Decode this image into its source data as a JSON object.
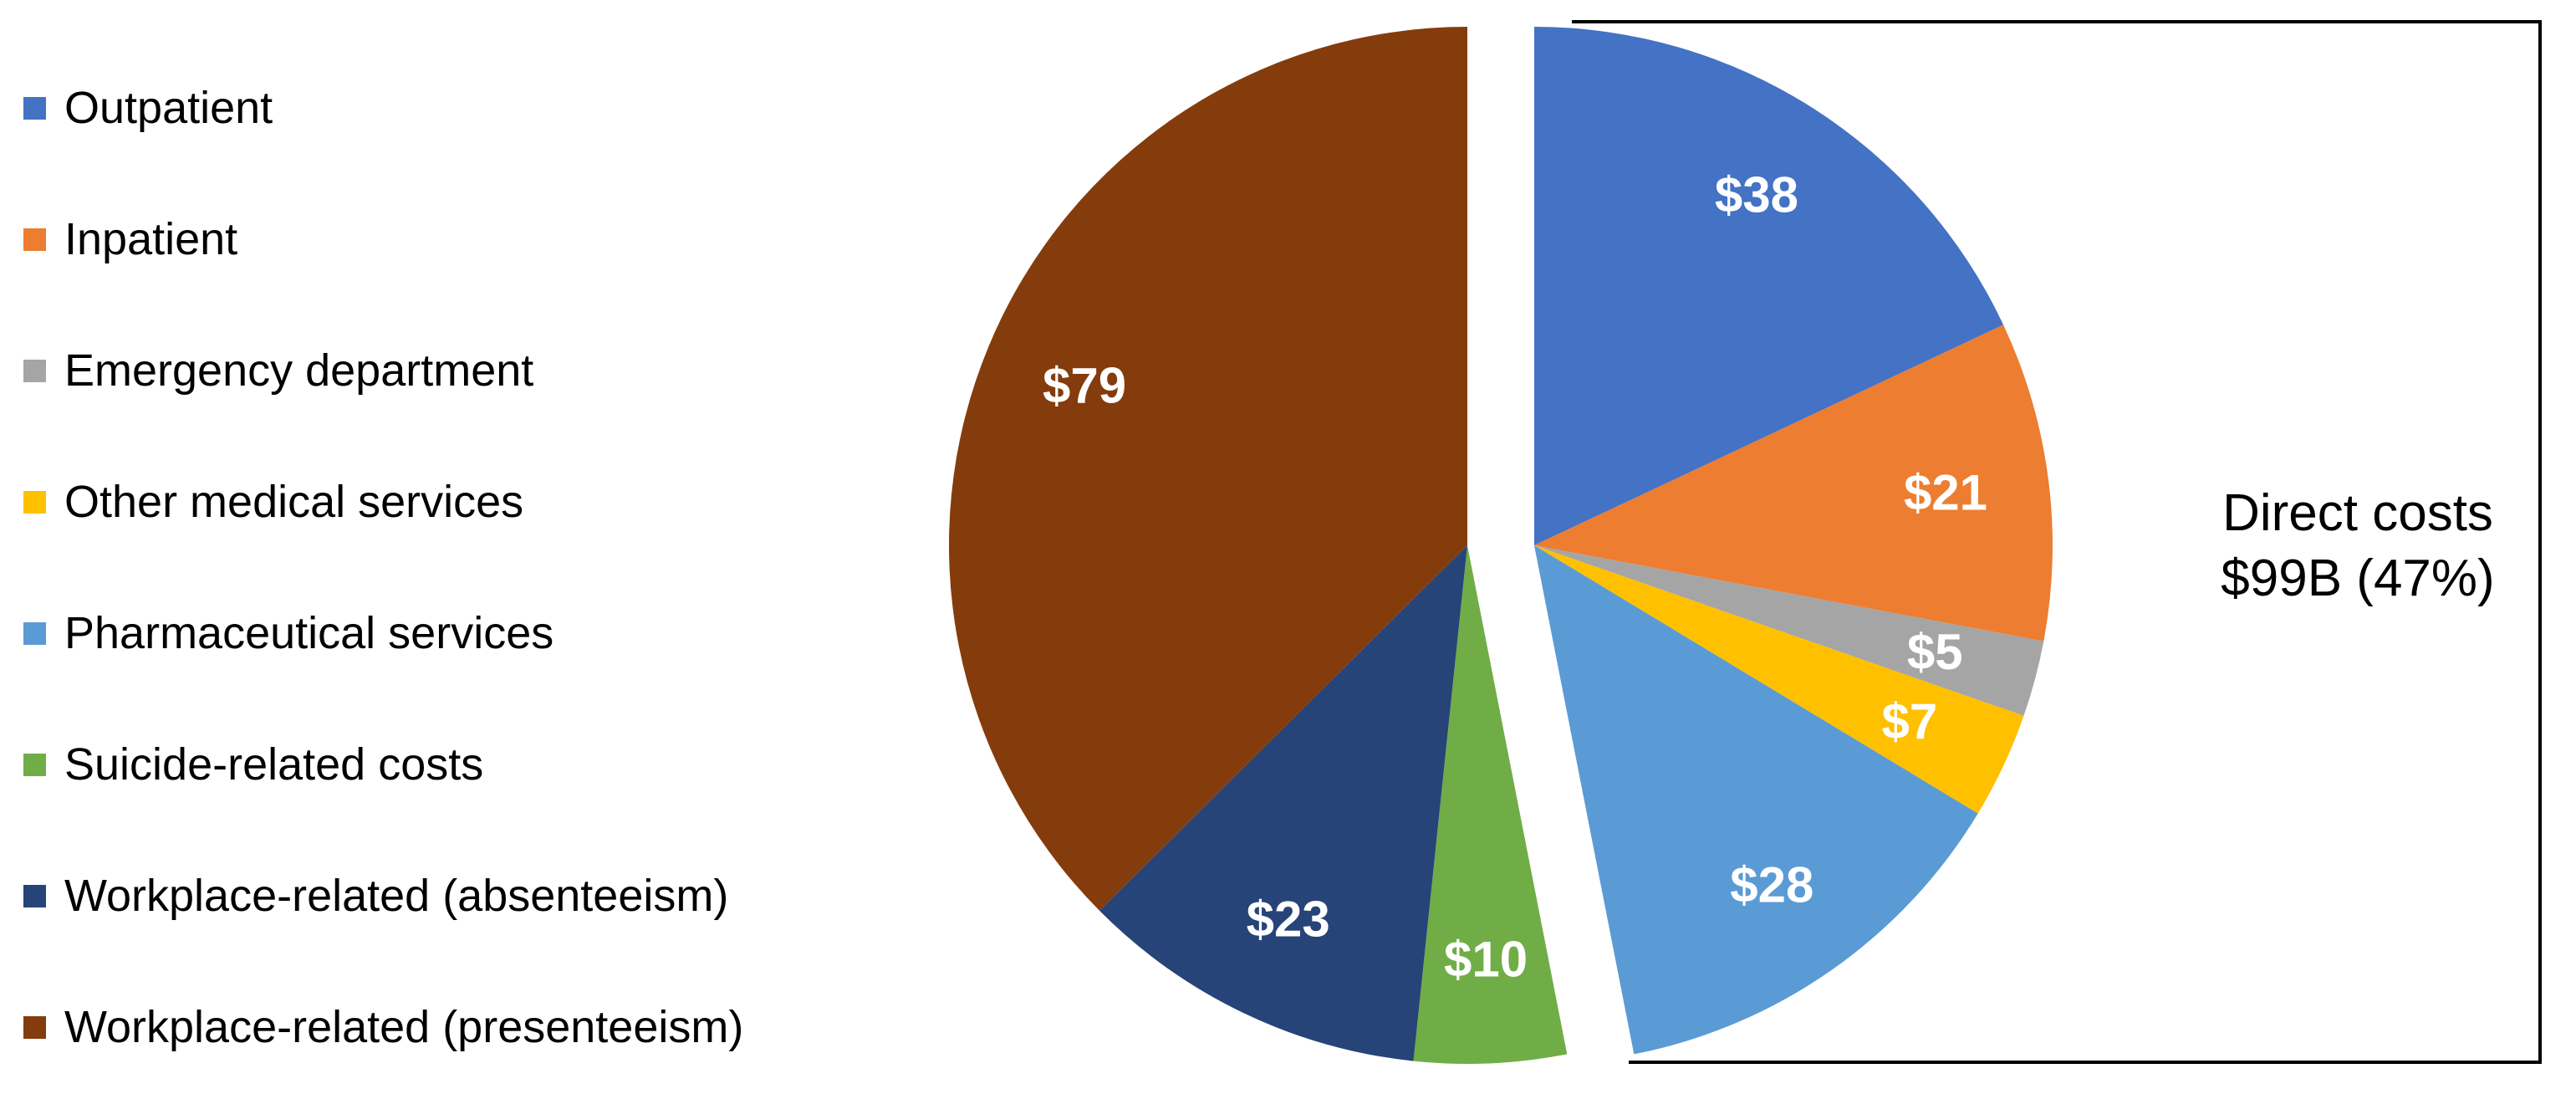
{
  "page": {
    "background_color": "#FFFFFF"
  },
  "chart_data": {
    "type": "pie",
    "title": "",
    "start_angle_deg": 0,
    "direction": "clockwise",
    "legend_position": "left",
    "slices": [
      {
        "label": "Outpatient",
        "value": 38,
        "display": "$38",
        "color": "#4472C4",
        "exploded": true
      },
      {
        "label": "Inpatient",
        "value": 21,
        "display": "$21",
        "color": "#ED7D31",
        "exploded": true
      },
      {
        "label": "Emergency department",
        "value": 5,
        "display": "$5",
        "color": "#A5A5A5",
        "exploded": true
      },
      {
        "label": "Other medical services",
        "value": 7,
        "display": "$7",
        "color": "#FFC000",
        "exploded": true
      },
      {
        "label": "Pharmaceutical services",
        "value": 28,
        "display": "$28",
        "color": "#5B9BD5",
        "exploded": true
      },
      {
        "label": "Suicide-related costs",
        "value": 10,
        "display": "$10",
        "color": "#70AD47",
        "exploded": false
      },
      {
        "label": "Workplace-related (absenteeism)",
        "value": 23,
        "display": "$23",
        "color": "#264478",
        "exploded": false
      },
      {
        "label": "Workplace-related (presenteeism)",
        "value": 79,
        "display": "$79",
        "color": "#843C0C",
        "exploded": false
      }
    ],
    "annotation": {
      "line1": "Direct costs",
      "line2": "$99B (47%)"
    }
  }
}
